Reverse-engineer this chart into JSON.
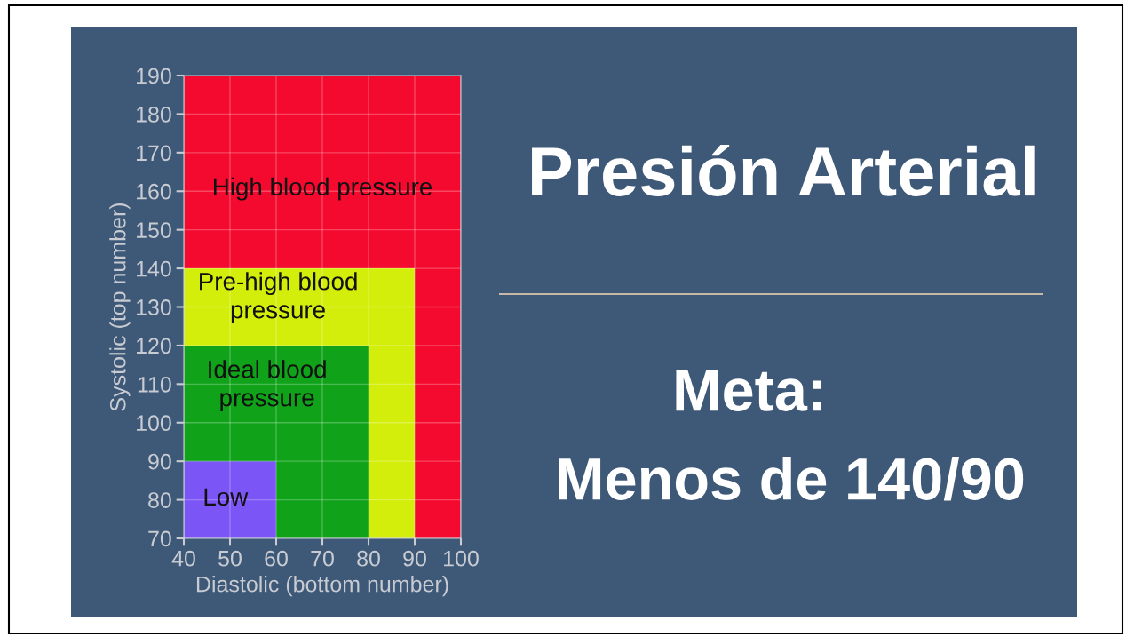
{
  "chart_data": {
    "type": "area",
    "title": "Presión Arterial",
    "xlabel": "Diastolic (bottom number)",
    "ylabel": "Systolic (top number)",
    "bands": [
      {
        "axis": "x",
        "from": 40,
        "to": 100,
        "label": "High blood pressure",
        "color": "#f40a2e"
      }
    ],
    "series": [
      {
        "x": [
          40,
          90
        ],
        "values": [
          140,
          140
        ],
        "color": "#d4ee0c"
      },
      {
        "x": [
          40,
          80
        ],
        "values": [
          120,
          120
        ],
        "color": "#10a31a"
      },
      {
        "x": [
          40,
          60
        ],
        "values": [
          90,
          90
        ],
        "color": "#7b55f5"
      }
    ],
    "xlim": [
      40,
      100
    ],
    "xticks": [
      40,
      50,
      60,
      70,
      80,
      90,
      100
    ],
    "ylim": [
      70,
      190
    ],
    "yticks": [
      70,
      80,
      90,
      100,
      110,
      120,
      130,
      140,
      150,
      160,
      170,
      180,
      190
    ],
    "grid": true,
    "annotations": [
      "Pre-high blood\npressure",
      "Ideal blood\npressure",
      "Low",
      "Meta:",
      "Menos de 140/90"
    ]
  }
}
